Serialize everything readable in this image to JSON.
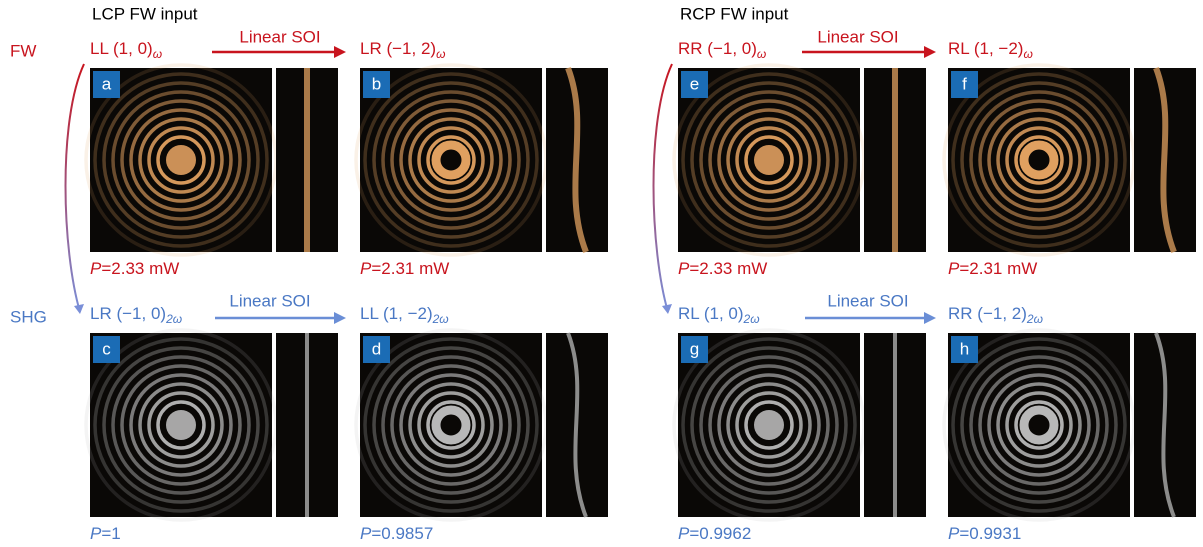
{
  "headers": [
    "LCP FW input",
    "RCP FW input"
  ],
  "row_labels": [
    "FW",
    "SHG"
  ],
  "arrows": [
    {
      "label": "Linear SOI"
    },
    {
      "label": "Linear SOI"
    },
    {
      "label": "Linear SOI"
    },
    {
      "label": "Linear SOI"
    }
  ],
  "panels": [
    {
      "letter": "a",
      "label": "LL (1, 0)",
      "subscript": "ω",
      "symbol": "P",
      "power": "=2.33 mW"
    },
    {
      "letter": "b",
      "label": "LR (−1, 2)",
      "subscript": "ω",
      "symbol": "P",
      "power": "=2.31 mW"
    },
    {
      "letter": "c",
      "label": "LR (−1, 0)",
      "subscript": "2ω",
      "symbol": "P",
      "power": "=1"
    },
    {
      "letter": "d",
      "label": "LL (1, −2)",
      "subscript": "2ω",
      "symbol": "P",
      "power": "=0.9857"
    },
    {
      "letter": "e",
      "label": "RR (−1, 0)",
      "subscript": "ω",
      "symbol": "P",
      "power": "=2.33 mW"
    },
    {
      "letter": "f",
      "label": "RL (1, −2)",
      "subscript": "ω",
      "symbol": "P",
      "power": "=2.31 mW"
    },
    {
      "letter": "g",
      "label": "RL (1, 0)",
      "subscript": "2ω",
      "symbol": "P",
      "power": "=0.9962"
    },
    {
      "letter": "h",
      "label": "RR (−1, 2)",
      "subscript": "2ω",
      "symbol": "P",
      "power": "=0.9931"
    }
  ]
}
